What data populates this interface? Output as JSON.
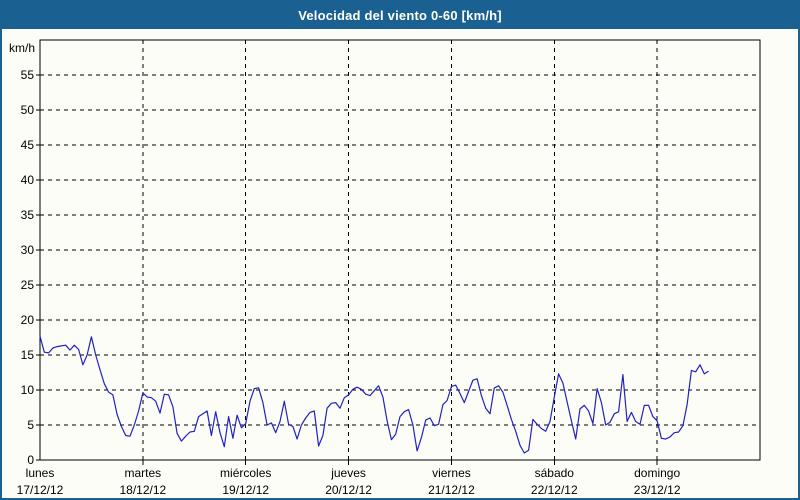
{
  "window": {
    "title": "Velocidad del viento 0-60 [km/h]"
  },
  "colors": {
    "frame_border": "#1a6191",
    "titlebar_bg": "#1a6191",
    "title_text": "#ffffff",
    "background": "#fdfdf7",
    "grid": "#000000",
    "axis": "#000000",
    "series_line": "#2222c0",
    "label_text": "#000000"
  },
  "chart_data": {
    "type": "line",
    "title": "Velocidad del viento 0-60 [km/h]",
    "y_unit_label": "km/h",
    "ylim": [
      0,
      60
    ],
    "ytick_step": 5,
    "yticks": [
      0,
      5,
      10,
      15,
      20,
      25,
      30,
      35,
      40,
      45,
      50,
      55
    ],
    "grid": "dashed",
    "legend": "none",
    "x_days": [
      {
        "name": "lunes",
        "date": "17/12/12"
      },
      {
        "name": "martes",
        "date": "18/12/12"
      },
      {
        "name": "miércoles",
        "date": "19/12/12"
      },
      {
        "name": "jueves",
        "date": "20/12/12"
      },
      {
        "name": "viernes",
        "date": "21/12/12"
      },
      {
        "name": "sábado",
        "date": "22/12/12"
      },
      {
        "name": "domingo",
        "date": "23/12/12"
      }
    ],
    "samples_per_day": 24,
    "series": [
      {
        "name": "velocidad del viento",
        "unit": "km/h",
        "color": "#2222c0",
        "values": [
          17.7,
          15.4,
          15.3,
          16.0,
          16.2,
          16.3,
          16.4,
          15.7,
          16.4,
          15.8,
          13.6,
          15.0,
          17.6,
          15.0,
          12.9,
          10.9,
          9.7,
          9.3,
          6.5,
          4.8,
          3.5,
          3.4,
          5.0,
          7.0,
          9.6,
          9.0,
          8.9,
          8.4,
          6.7,
          9.4,
          9.3,
          7.6,
          3.8,
          2.7,
          3.4,
          4.0,
          4.1,
          6.2,
          6.6,
          7.0,
          3.5,
          6.9,
          3.9,
          1.9,
          6.2,
          3.1,
          6.4,
          4.6,
          5.2,
          8.4,
          10.2,
          10.3,
          8.2,
          5.0,
          5.3,
          3.9,
          5.5,
          8.4,
          5.1,
          4.8,
          3.0,
          5.0,
          6.0,
          6.8,
          7.0,
          2.0,
          3.5,
          7.4,
          8.1,
          8.2,
          7.4,
          8.9,
          9.3,
          10.1,
          10.4,
          10.1,
          9.4,
          9.2,
          9.9,
          10.6,
          9.0,
          5.6,
          2.9,
          3.7,
          6.2,
          6.9,
          7.2,
          5.0,
          1.3,
          3.2,
          5.7,
          6.0,
          4.9,
          5.1,
          7.9,
          8.5,
          10.5,
          10.7,
          9.5,
          8.2,
          9.8,
          11.4,
          11.6,
          9.2,
          7.4,
          6.6,
          10.3,
          10.6,
          9.7,
          7.8,
          5.8,
          4.1,
          2.1,
          1.0,
          1.4,
          5.8,
          5.1,
          4.5,
          4.1,
          5.5,
          9.0,
          12.3,
          11.0,
          8.3,
          5.6,
          3.0,
          7.3,
          7.8,
          7.0,
          5.2,
          10.2,
          8.2,
          5.0,
          5.4,
          6.6,
          6.9,
          12.2,
          5.5,
          6.8,
          5.5,
          5.1,
          7.8,
          7.8,
          6.2,
          5.6,
          3.1,
          3.0,
          3.3,
          3.9,
          4.0,
          4.9,
          7.9,
          12.8,
          12.6,
          13.6,
          12.3,
          12.7
        ]
      }
    ]
  }
}
